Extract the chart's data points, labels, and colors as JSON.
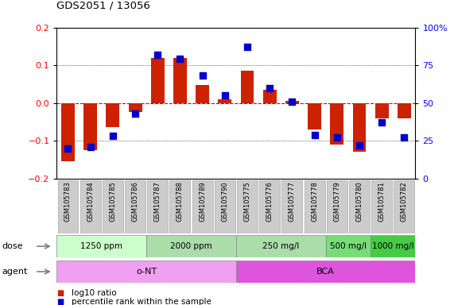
{
  "title": "GDS2051 / 13056",
  "samples": [
    "GSM105783",
    "GSM105784",
    "GSM105785",
    "GSM105786",
    "GSM105787",
    "GSM105788",
    "GSM105789",
    "GSM105790",
    "GSM105775",
    "GSM105776",
    "GSM105777",
    "GSM105778",
    "GSM105779",
    "GSM105780",
    "GSM105781",
    "GSM105782"
  ],
  "log10_ratio": [
    -0.155,
    -0.125,
    -0.065,
    -0.025,
    0.12,
    0.12,
    0.048,
    0.01,
    0.085,
    0.035,
    0.005,
    -0.07,
    -0.11,
    -0.13,
    -0.04,
    -0.04
  ],
  "percentile_rank": [
    20,
    21,
    28,
    43,
    82,
    79,
    68,
    55,
    87,
    60,
    51,
    29,
    27,
    22,
    37,
    27
  ],
  "bar_color": "#cc2200",
  "dot_color": "#0000cc",
  "ylim_left": [
    -0.2,
    0.2
  ],
  "ylim_right": [
    0,
    100
  ],
  "yticks_left": [
    -0.2,
    -0.1,
    0.0,
    0.1,
    0.2
  ],
  "yticks_right": [
    0,
    25,
    50,
    75,
    100
  ],
  "dose_groups": [
    {
      "label": "1250 ppm",
      "start": 0,
      "end": 4,
      "color": "#ccffcc"
    },
    {
      "label": "2000 ppm",
      "start": 4,
      "end": 8,
      "color": "#aaddaa"
    },
    {
      "label": "250 mg/l",
      "start": 8,
      "end": 12,
      "color": "#aaddaa"
    },
    {
      "label": "500 mg/l",
      "start": 12,
      "end": 14,
      "color": "#77dd77"
    },
    {
      "label": "1000 mg/l",
      "start": 14,
      "end": 16,
      "color": "#44cc44"
    }
  ],
  "agent_groups": [
    {
      "label": "o-NT",
      "start": 0,
      "end": 8,
      "color": "#f0a0f0"
    },
    {
      "label": "BCA",
      "start": 8,
      "end": 16,
      "color": "#dd55dd"
    }
  ],
  "legend_items": [
    {
      "label": "log10 ratio",
      "color": "#cc2200"
    },
    {
      "label": "percentile rank within the sample",
      "color": "#0000cc"
    }
  ],
  "zero_line_color": "#cc0000",
  "bg_color": "#ffffff",
  "dose_label": "dose",
  "agent_label": "agent",
  "bar_width": 0.6,
  "dot_size": 28
}
